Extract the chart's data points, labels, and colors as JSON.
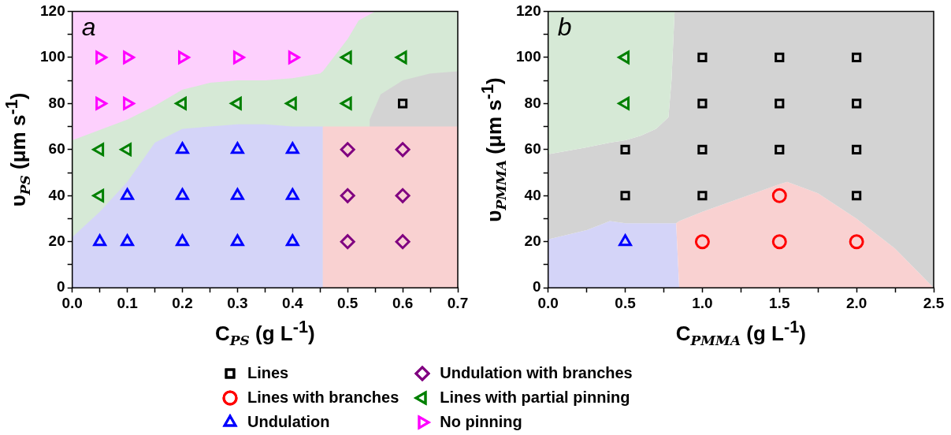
{
  "chart_data": [
    {
      "type": "scatter",
      "xlabel": "C$_{PS}$ (g L$^{-1}$)",
      "ylabel": "υ$_{PS}$ (μm s$^{-1}$)",
      "annotations": [
        "a"
      ],
      "legend": "bottom",
      "grid": false,
      "xlim": [
        0,
        0.7
      ],
      "ylim": [
        0,
        120
      ],
      "xticks": [
        {
          "value": 0,
          "label": "0.0"
        },
        {
          "value": 0.05,
          "label": null
        },
        {
          "value": 0.1,
          "label": "0.1"
        },
        {
          "value": 0.15,
          "label": null
        },
        {
          "value": 0.2,
          "label": "0.2"
        },
        {
          "value": 0.25,
          "label": null
        },
        {
          "value": 0.3,
          "label": "0.3"
        },
        {
          "value": 0.35,
          "label": null
        },
        {
          "value": 0.4,
          "label": "0.4"
        },
        {
          "value": 0.45,
          "label": null
        },
        {
          "value": 0.5,
          "label": "0.5"
        },
        {
          "value": 0.55,
          "label": null
        },
        {
          "value": 0.6,
          "label": "0.6"
        },
        {
          "value": 0.65,
          "label": null
        },
        {
          "value": 0.7,
          "label": "0.7"
        }
      ],
      "yticks": [
        0,
        {
          "value": 10,
          "label": null
        },
        20,
        {
          "value": 30,
          "label": null
        },
        40,
        {
          "value": 50,
          "label": null
        },
        60,
        {
          "value": 70,
          "label": null
        },
        80,
        {
          "value": 90,
          "label": null
        },
        100,
        {
          "value": 110,
          "label": null
        },
        120
      ],
      "series": [
        {
          "type": "area",
          "color": "#fdd0fd",
          "x": [
            0,
            0.55
          ],
          "values": [
            120,
            120
          ]
        },
        {
          "type": "area",
          "color": "#d6e9d6",
          "x": [
            0,
            0.1,
            0.15,
            0.2,
            0.25,
            0.3,
            0.35,
            0.4,
            0.45,
            0.455,
            0.5,
            0.52,
            0.55,
            0.6,
            0.65,
            0.7
          ],
          "values": [
            64,
            73,
            79,
            86,
            89,
            90,
            90,
            91,
            93,
            94,
            108,
            116,
            120,
            120,
            120,
            120
          ]
        },
        {
          "type": "area",
          "color": "#d3d3d3",
          "x": [
            0.54,
            0.56,
            0.6,
            0.65,
            0.7
          ],
          "values": [
            73,
            84,
            90,
            93,
            94
          ]
        },
        {
          "type": "area",
          "color": "#d4d4f8",
          "x": [
            0,
            0.05,
            0.1,
            0.15,
            0.2,
            0.25,
            0.3,
            0.35,
            0.4,
            0.455
          ],
          "values": [
            22,
            33,
            46,
            63,
            69,
            70,
            71,
            71,
            70,
            70
          ]
        },
        {
          "type": "area",
          "color": "#f9d1d1",
          "x": [
            0.455,
            0.7
          ],
          "values": [
            70,
            70
          ]
        },
        {
          "name": "Lines",
          "marker": "square",
          "color": "#000000",
          "x": [
            0.6
          ],
          "values": [
            80
          ]
        },
        {
          "name": "Undulation",
          "marker": "triangle",
          "color": "#0000ff",
          "x": [
            0.2,
            0.3,
            0.4,
            0.1,
            0.2,
            0.3,
            0.4,
            0.05,
            0.1,
            0.2,
            0.3,
            0.4
          ],
          "values": [
            60,
            60,
            60,
            40,
            40,
            40,
            40,
            20,
            20,
            20,
            20,
            20
          ]
        },
        {
          "name": "Undulation with branches",
          "marker": "diamond",
          "color": "#800080",
          "x": [
            0.5,
            0.6,
            0.5,
            0.6,
            0.5,
            0.6
          ],
          "values": [
            60,
            60,
            40,
            40,
            20,
            20
          ]
        },
        {
          "name": "Lines with partial pinning",
          "marker": "triangle-left",
          "color": "#008000",
          "x": [
            0.5,
            0.6,
            0.2,
            0.3,
            0.4,
            0.5,
            0.05,
            0.1,
            0.05
          ],
          "values": [
            100,
            100,
            80,
            80,
            80,
            80,
            60,
            60,
            40
          ]
        },
        {
          "name": "No pinning",
          "marker": "triangle-right",
          "color": "#ff00ff",
          "x": [
            0.05,
            0.1,
            0.2,
            0.3,
            0.4,
            0.05,
            0.1
          ],
          "values": [
            100,
            100,
            100,
            100,
            100,
            80,
            80
          ]
        }
      ]
    },
    {
      "type": "scatter",
      "xlabel": "C$_{PMMA}$ (g L$^{-1}$)",
      "ylabel": "υ$_{PMMA}$ (μm s$^{-1}$)",
      "annotations": [
        "b"
      ],
      "legend": "bottom",
      "grid": false,
      "stacked": true,
      "xlim": [
        0,
        2.5
      ],
      "ylim": [
        0,
        120
      ],
      "xticks": [
        {
          "value": 0,
          "label": "0.0"
        },
        {
          "value": 0.25,
          "label": null
        },
        {
          "value": 0.5,
          "label": "0.5"
        },
        {
          "value": 0.75,
          "label": null
        },
        {
          "value": 1,
          "label": "1.0"
        },
        {
          "value": 1.25,
          "label": null
        },
        {
          "value": 1.5,
          "label": "1.5"
        },
        {
          "value": 1.75,
          "label": null
        },
        {
          "value": 2,
          "label": "2.0"
        },
        {
          "value": 2.25,
          "label": null
        },
        {
          "value": 2.5,
          "label": "2.5"
        }
      ],
      "yticks": [
        0,
        {
          "value": 10,
          "label": null
        },
        20,
        {
          "value": 30,
          "label": null
        },
        40,
        {
          "value": 50,
          "label": null
        },
        60,
        {
          "value": 70,
          "label": null
        },
        80,
        {
          "value": 90,
          "label": null
        },
        100,
        {
          "value": 110,
          "label": null
        },
        120
      ],
      "x": [
        0,
        0.25,
        0.4,
        0.5,
        0.6,
        0.7,
        0.78,
        0.8,
        0.82,
        0.83,
        0.85,
        1,
        1.25,
        1.5,
        1.55,
        1.75,
        2,
        2.25,
        2.5
      ],
      "series": [
        {
          "type": "area",
          "color": "#d4d4f8",
          "values": [
            21,
            25,
            29,
            28,
            28,
            28,
            28,
            28,
            28,
            28,
            0,
            0,
            0,
            0,
            0,
            0,
            0,
            0,
            0
          ]
        },
        {
          "type": "area",
          "color": "#f9d1d1",
          "values": [
            0,
            0,
            0,
            0,
            0,
            0,
            0,
            0,
            0,
            0,
            29,
            33,
            39,
            45,
            46,
            41,
            30,
            17,
            0
          ]
        },
        {
          "type": "area",
          "color": "#d3d3d3",
          "values": [
            37,
            36,
            34,
            36,
            38,
            41,
            46,
            62,
            92,
            92,
            91,
            87,
            81,
            75,
            74,
            79,
            90,
            103,
            120
          ]
        },
        {
          "type": "area",
          "color": "#d6e9d6",
          "values": [
            62,
            59,
            57,
            56,
            54,
            51,
            46,
            30,
            0,
            0,
            0,
            0,
            0,
            0,
            0,
            0,
            0,
            0,
            0
          ]
        },
        {
          "name": "Lines",
          "marker": "square",
          "color": "#000000",
          "x": [
            1,
            1.5,
            2,
            1,
            1.5,
            2,
            0.5,
            1,
            1.5,
            2,
            0.5,
            1,
            2
          ],
          "values": [
            100,
            100,
            100,
            80,
            80,
            80,
            60,
            60,
            60,
            60,
            40,
            40,
            40
          ]
        },
        {
          "name": "Lines with branches",
          "marker": "circle",
          "color": "#ff0000",
          "x": [
            1.5,
            1,
            1.5,
            2
          ],
          "values": [
            40,
            20,
            20,
            20
          ]
        },
        {
          "name": "Undulation",
          "marker": "triangle",
          "color": "#0000ff",
          "x": [
            0.5
          ],
          "values": [
            20
          ]
        },
        {
          "name": "Lines with partial pinning",
          "marker": "triangle-left",
          "color": "#008000",
          "x": [
            0.5,
            0.5
          ],
          "values": [
            100,
            80
          ]
        }
      ]
    }
  ]
}
